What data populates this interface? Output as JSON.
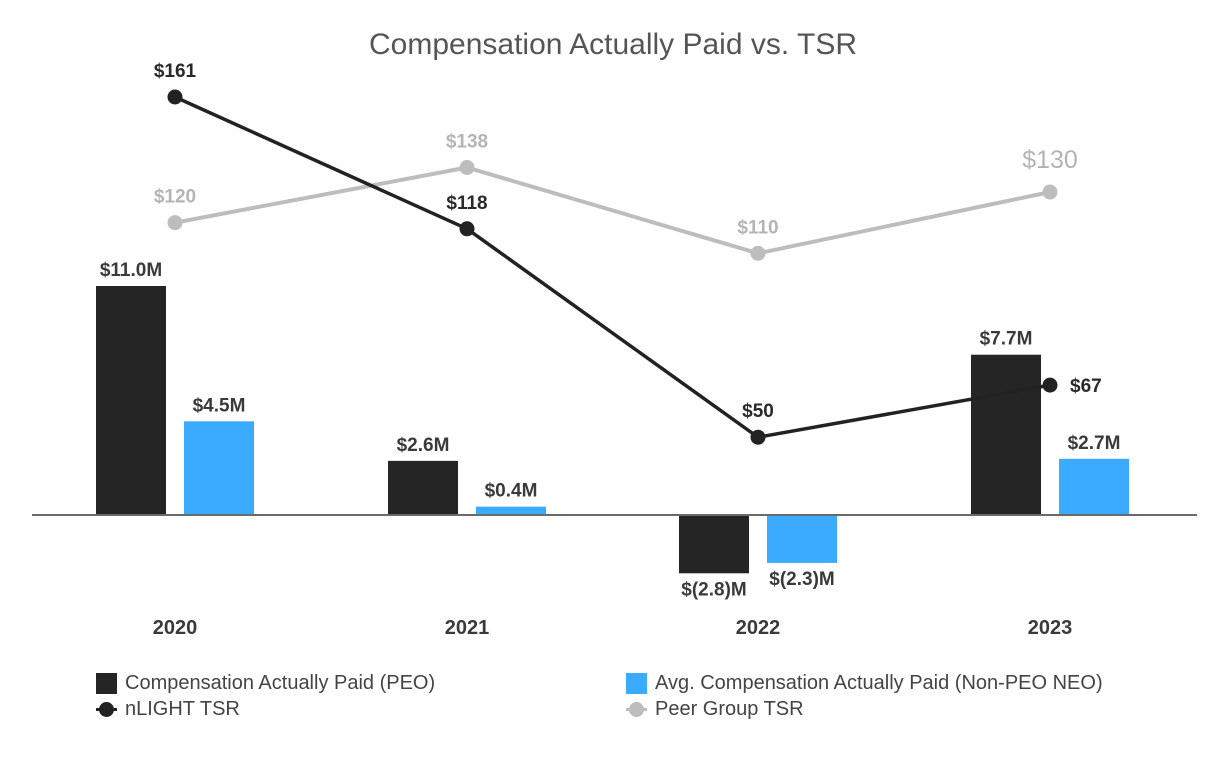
{
  "chart_data": {
    "type": "bar",
    "title": "Compensation Actually Paid vs. TSR",
    "categories": [
      "2020",
      "2021",
      "2022",
      "2023"
    ],
    "series": [
      {
        "name": "Compensation Actually Paid (PEO)",
        "kind": "bar",
        "color": "#252525",
        "values": [
          11.0,
          2.6,
          -2.8,
          7.7
        ],
        "labels": [
          "$11.0M",
          "$2.6M",
          "$(2.8)M",
          "$7.7M"
        ]
      },
      {
        "name": "Avg. Compensation Actually Paid (Non-PEO NEO)",
        "kind": "bar",
        "color": "#3aabff",
        "values": [
          4.5,
          0.4,
          -2.3,
          2.7
        ],
        "labels": [
          "$4.5M",
          "$0.4M",
          "$(2.3)M",
          "$2.7M"
        ]
      },
      {
        "name": "nLIGHT TSR",
        "kind": "line",
        "color": "#222222",
        "values": [
          161,
          118,
          50,
          67
        ],
        "labels": [
          "$161",
          "$118",
          "$50",
          "$67"
        ]
      },
      {
        "name": "Peer Group TSR",
        "kind": "line",
        "color": "#bdbdbd",
        "values": [
          120,
          138,
          110,
          130
        ],
        "labels": [
          "$120",
          "$138",
          "$110",
          "$130"
        ]
      }
    ],
    "bar_axis_range": [
      -3.5,
      12.5
    ],
    "tsr_axis_range": [
      0,
      210
    ],
    "grid": false,
    "legend_position": "bottom"
  }
}
